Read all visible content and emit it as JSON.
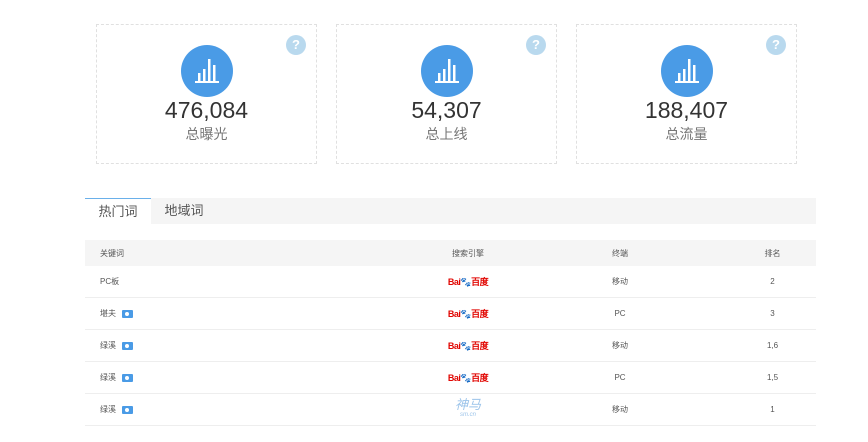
{
  "stats": [
    {
      "value": "476,084",
      "label": "总曝光",
      "icon": "bar-chart-icon",
      "help": "?"
    },
    {
      "value": "54,307",
      "label": "总上线",
      "icon": "bar-chart-icon",
      "help": "?"
    },
    {
      "value": "188,407",
      "label": "总流量",
      "icon": "bar-chart-icon",
      "help": "?"
    }
  ],
  "tabs": [
    {
      "label": "热门词",
      "active": true
    },
    {
      "label": "地域词",
      "active": false
    }
  ],
  "table": {
    "headers": [
      "关键词",
      "搜索引擎",
      "终端",
      "排名"
    ],
    "rows": [
      {
        "keyword": "PC板",
        "camera": false,
        "engine": "Baidu",
        "terminal": "移动",
        "rank": "2"
      },
      {
        "keyword": "堪夫",
        "camera": true,
        "engine": "Baidu",
        "terminal": "PC",
        "rank": "3"
      },
      {
        "keyword": "绿溪",
        "camera": true,
        "engine": "Baidu",
        "terminal": "移动",
        "rank": "1,6"
      },
      {
        "keyword": "绿溪",
        "camera": true,
        "engine": "Baidu",
        "terminal": "PC",
        "rank": "1,5"
      },
      {
        "keyword": "绿溪",
        "camera": true,
        "engine": "Shenma",
        "terminal": "移动",
        "rank": "1"
      }
    ]
  },
  "logos": {
    "baidu_left": "Bai",
    "baidu_paw": "🐾",
    "baidu_right": "百度",
    "shenma": "神马",
    "shenma_sub": "sm.cn"
  },
  "colors": {
    "accent": "#4a9be6",
    "baidu_red": "#e10602",
    "baidu_blue": "#2932e1"
  }
}
